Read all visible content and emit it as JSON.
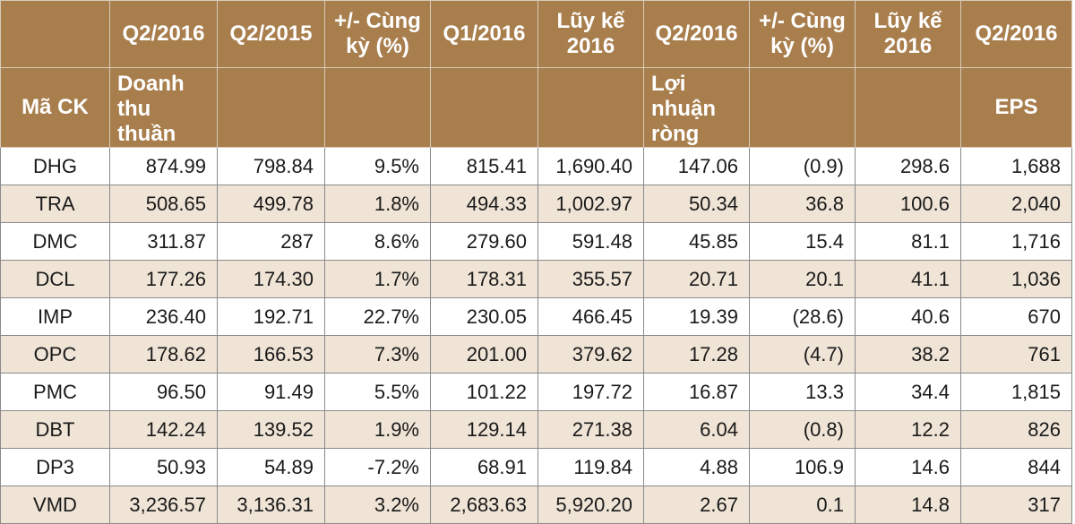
{
  "header_row1": [
    "",
    "Q2/2016",
    "Q2/2015",
    "+/- Cùng kỳ (%)",
    "Q1/2016",
    "Lũy kế 2016",
    "Q2/2016",
    "+/- Cùng kỳ (%)",
    "Lũy kế 2016",
    "Q2/2016"
  ],
  "header_row2": {
    "code": "Mã CK",
    "revenue": "Doanh thu thuần",
    "profit": "Lợi nhuận ròng",
    "eps": "EPS"
  },
  "rows": [
    [
      "DHG",
      "874.99",
      "798.84",
      "9.5%",
      "815.41",
      "1,690.40",
      "147.06",
      "(0.9)",
      "298.6",
      "1,688"
    ],
    [
      "TRA",
      "508.65",
      "499.78",
      "1.8%",
      "494.33",
      "1,002.97",
      "50.34",
      "36.8",
      "100.6",
      "2,040"
    ],
    [
      "DMC",
      "311.87",
      "287",
      "8.6%",
      "279.60",
      "591.48",
      "45.85",
      "15.4",
      "81.1",
      "1,716"
    ],
    [
      "DCL",
      "177.26",
      "174.30",
      "1.7%",
      "178.31",
      "355.57",
      "20.71",
      "20.1",
      "41.1",
      "1,036"
    ],
    [
      "IMP",
      "236.40",
      "192.71",
      "22.7%",
      "230.05",
      "466.45",
      "19.39",
      "(28.6)",
      "40.6",
      "670"
    ],
    [
      "OPC",
      "178.62",
      "166.53",
      "7.3%",
      "201.00",
      "379.62",
      "17.28",
      "(4.7)",
      "38.2",
      "761"
    ],
    [
      "PMC",
      "96.50",
      "91.49",
      "5.5%",
      "101.22",
      "197.72",
      "16.87",
      "13.3",
      "34.4",
      "1,815"
    ],
    [
      "DBT",
      "142.24",
      "139.52",
      "1.9%",
      "129.14",
      "271.38",
      "6.04",
      "(0.8)",
      "12.2",
      "826"
    ],
    [
      "DP3",
      "50.93",
      "54.89",
      "-7.2%",
      "68.91",
      "119.84",
      "4.88",
      "106.9",
      "14.6",
      "844"
    ],
    [
      "VMD",
      "3,236.57",
      "3,136.31",
      "3.2%",
      "2,683.63",
      "5,920.20",
      "2.67",
      "0.1",
      "14.8",
      "317"
    ]
  ]
}
